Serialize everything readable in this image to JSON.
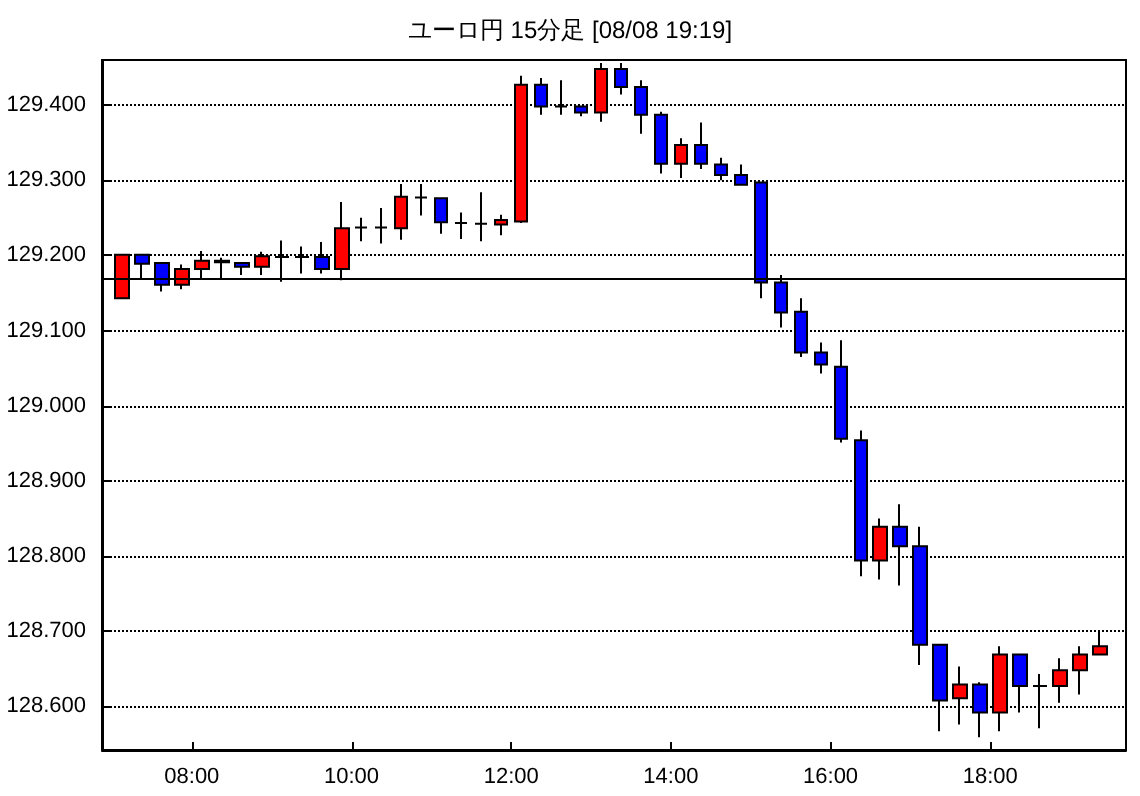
{
  "chart_data": {
    "type": "candlestick",
    "title": "ユーロ円 15分足 [08/08 19:19]",
    "x": [
      7.125,
      7.375,
      7.625,
      7.875,
      8.125,
      8.375,
      8.625,
      8.875,
      9.125,
      9.375,
      9.625,
      9.875,
      10.125,
      10.375,
      10.625,
      10.875,
      11.125,
      11.375,
      11.625,
      11.875,
      12.125,
      12.375,
      12.625,
      12.875,
      13.125,
      13.375,
      13.625,
      13.875,
      14.125,
      14.375,
      14.625,
      14.875,
      15.125,
      15.375,
      15.625,
      15.875,
      16.125,
      16.375,
      16.625,
      16.875,
      17.125,
      17.375,
      17.625,
      17.875,
      18.125,
      18.375,
      18.625,
      18.875,
      19.125,
      19.375
    ],
    "ohlc": [
      [
        129.143,
        129.201,
        129.143,
        129.201
      ],
      [
        129.201,
        129.201,
        129.169,
        129.189
      ],
      [
        129.19,
        129.19,
        129.152,
        129.161
      ],
      [
        129.161,
        129.188,
        129.155,
        129.182
      ],
      [
        129.182,
        129.206,
        129.169,
        129.193
      ],
      [
        129.193,
        129.197,
        129.169,
        129.191
      ],
      [
        129.19,
        129.19,
        129.174,
        129.185
      ],
      [
        129.185,
        129.205,
        129.174,
        129.199
      ],
      [
        129.198,
        129.22,
        129.165,
        129.198
      ],
      [
        129.198,
        129.212,
        129.176,
        129.198
      ],
      [
        129.198,
        129.218,
        129.176,
        129.182
      ],
      [
        129.182,
        129.271,
        129.167,
        129.236
      ],
      [
        129.237,
        129.25,
        129.219,
        129.237
      ],
      [
        129.237,
        129.263,
        129.216,
        129.237
      ],
      [
        129.236,
        129.295,
        129.221,
        129.278
      ],
      [
        129.277,
        129.295,
        129.253,
        129.277
      ],
      [
        129.276,
        129.276,
        129.229,
        129.244
      ],
      [
        129.243,
        129.257,
        129.222,
        129.243
      ],
      [
        129.242,
        129.284,
        129.219,
        129.242
      ],
      [
        129.241,
        129.254,
        129.227,
        129.247
      ],
      [
        129.245,
        129.439,
        129.243,
        129.427
      ],
      [
        129.427,
        129.436,
        129.387,
        129.398
      ],
      [
        129.398,
        129.433,
        129.387,
        129.398
      ],
      [
        129.398,
        129.398,
        129.385,
        129.39
      ],
      [
        129.39,
        129.456,
        129.378,
        129.448
      ],
      [
        129.448,
        129.456,
        129.414,
        129.424
      ],
      [
        129.424,
        129.433,
        129.362,
        129.387
      ],
      [
        129.387,
        129.391,
        129.309,
        129.322
      ],
      [
        129.322,
        129.356,
        129.303,
        129.347
      ],
      [
        129.347,
        129.377,
        129.315,
        129.322
      ],
      [
        129.321,
        129.33,
        129.3,
        129.307
      ],
      [
        129.307,
        129.321,
        129.294,
        129.294
      ],
      [
        129.297,
        129.297,
        129.143,
        129.164
      ],
      [
        129.164,
        129.174,
        129.104,
        129.124
      ],
      [
        129.125,
        129.143,
        129.065,
        129.071
      ],
      [
        129.071,
        129.084,
        129.043,
        129.055
      ],
      [
        129.052,
        129.087,
        128.951,
        128.956
      ],
      [
        128.954,
        128.967,
        128.773,
        128.794
      ],
      [
        128.794,
        128.85,
        128.769,
        128.839
      ],
      [
        128.839,
        128.869,
        128.761,
        128.813
      ],
      [
        128.813,
        128.839,
        128.655,
        128.682
      ],
      [
        128.682,
        128.683,
        128.567,
        128.608
      ],
      [
        128.611,
        128.653,
        128.576,
        128.629
      ],
      [
        128.629,
        128.632,
        128.559,
        128.592
      ],
      [
        128.592,
        128.68,
        128.567,
        128.669
      ],
      [
        128.669,
        128.669,
        128.592,
        128.627
      ],
      [
        128.627,
        128.643,
        128.571,
        128.627
      ],
      [
        128.627,
        128.664,
        128.605,
        128.648
      ],
      [
        128.648,
        128.68,
        128.616,
        128.669
      ],
      [
        128.669,
        128.701,
        128.669,
        128.68
      ]
    ],
    "colors": [
      "#ff0000",
      "#0000ff",
      "#0000ff",
      "#ff0000",
      "#ff0000",
      "#0000ff",
      "#0000ff",
      "#ff0000",
      "#000000",
      "#000000",
      "#0000ff",
      "#ff0000",
      "#000000",
      "#000000",
      "#ff0000",
      "#000000",
      "#0000ff",
      "#000000",
      "#000000",
      "#ff0000",
      "#ff0000",
      "#0000ff",
      "#000000",
      "#0000ff",
      "#ff0000",
      "#0000ff",
      "#0000ff",
      "#0000ff",
      "#ff0000",
      "#0000ff",
      "#0000ff",
      "#0000ff",
      "#0000ff",
      "#0000ff",
      "#0000ff",
      "#0000ff",
      "#0000ff",
      "#0000ff",
      "#ff0000",
      "#0000ff",
      "#0000ff",
      "#0000ff",
      "#ff0000",
      "#0000ff",
      "#ff0000",
      "#0000ff",
      "#000000",
      "#ff0000",
      "#ff0000",
      "#ff0000"
    ],
    "xlim": [
      6.875,
      19.7
    ],
    "xticks": [
      {
        "value": 8,
        "label": "08:00"
      },
      {
        "value": 10,
        "label": "10:00"
      },
      {
        "value": 12,
        "label": "12:00"
      },
      {
        "value": 14,
        "label": "14:00"
      },
      {
        "value": 16,
        "label": "16:00"
      },
      {
        "value": 18,
        "label": "18:00"
      }
    ],
    "ylim": [
      128.542,
      129.46
    ],
    "yticks": [
      {
        "value": 128.6,
        "label": "128.600"
      },
      {
        "value": 128.7,
        "label": "128.700"
      },
      {
        "value": 128.8,
        "label": "128.800"
      },
      {
        "value": 128.9,
        "label": "128.900"
      },
      {
        "value": 129,
        "label": "129.000"
      },
      {
        "value": 129.1,
        "label": "129.100"
      },
      {
        "value": 129.2,
        "label": "129.200"
      },
      {
        "value": 129.3,
        "label": "129.300"
      },
      {
        "value": 129.4,
        "label": "129.400"
      }
    ],
    "grid": "y",
    "ref_lines": [
      {
        "axis": "y",
        "value": 129.172,
        "color": "#000000"
      }
    ]
  }
}
